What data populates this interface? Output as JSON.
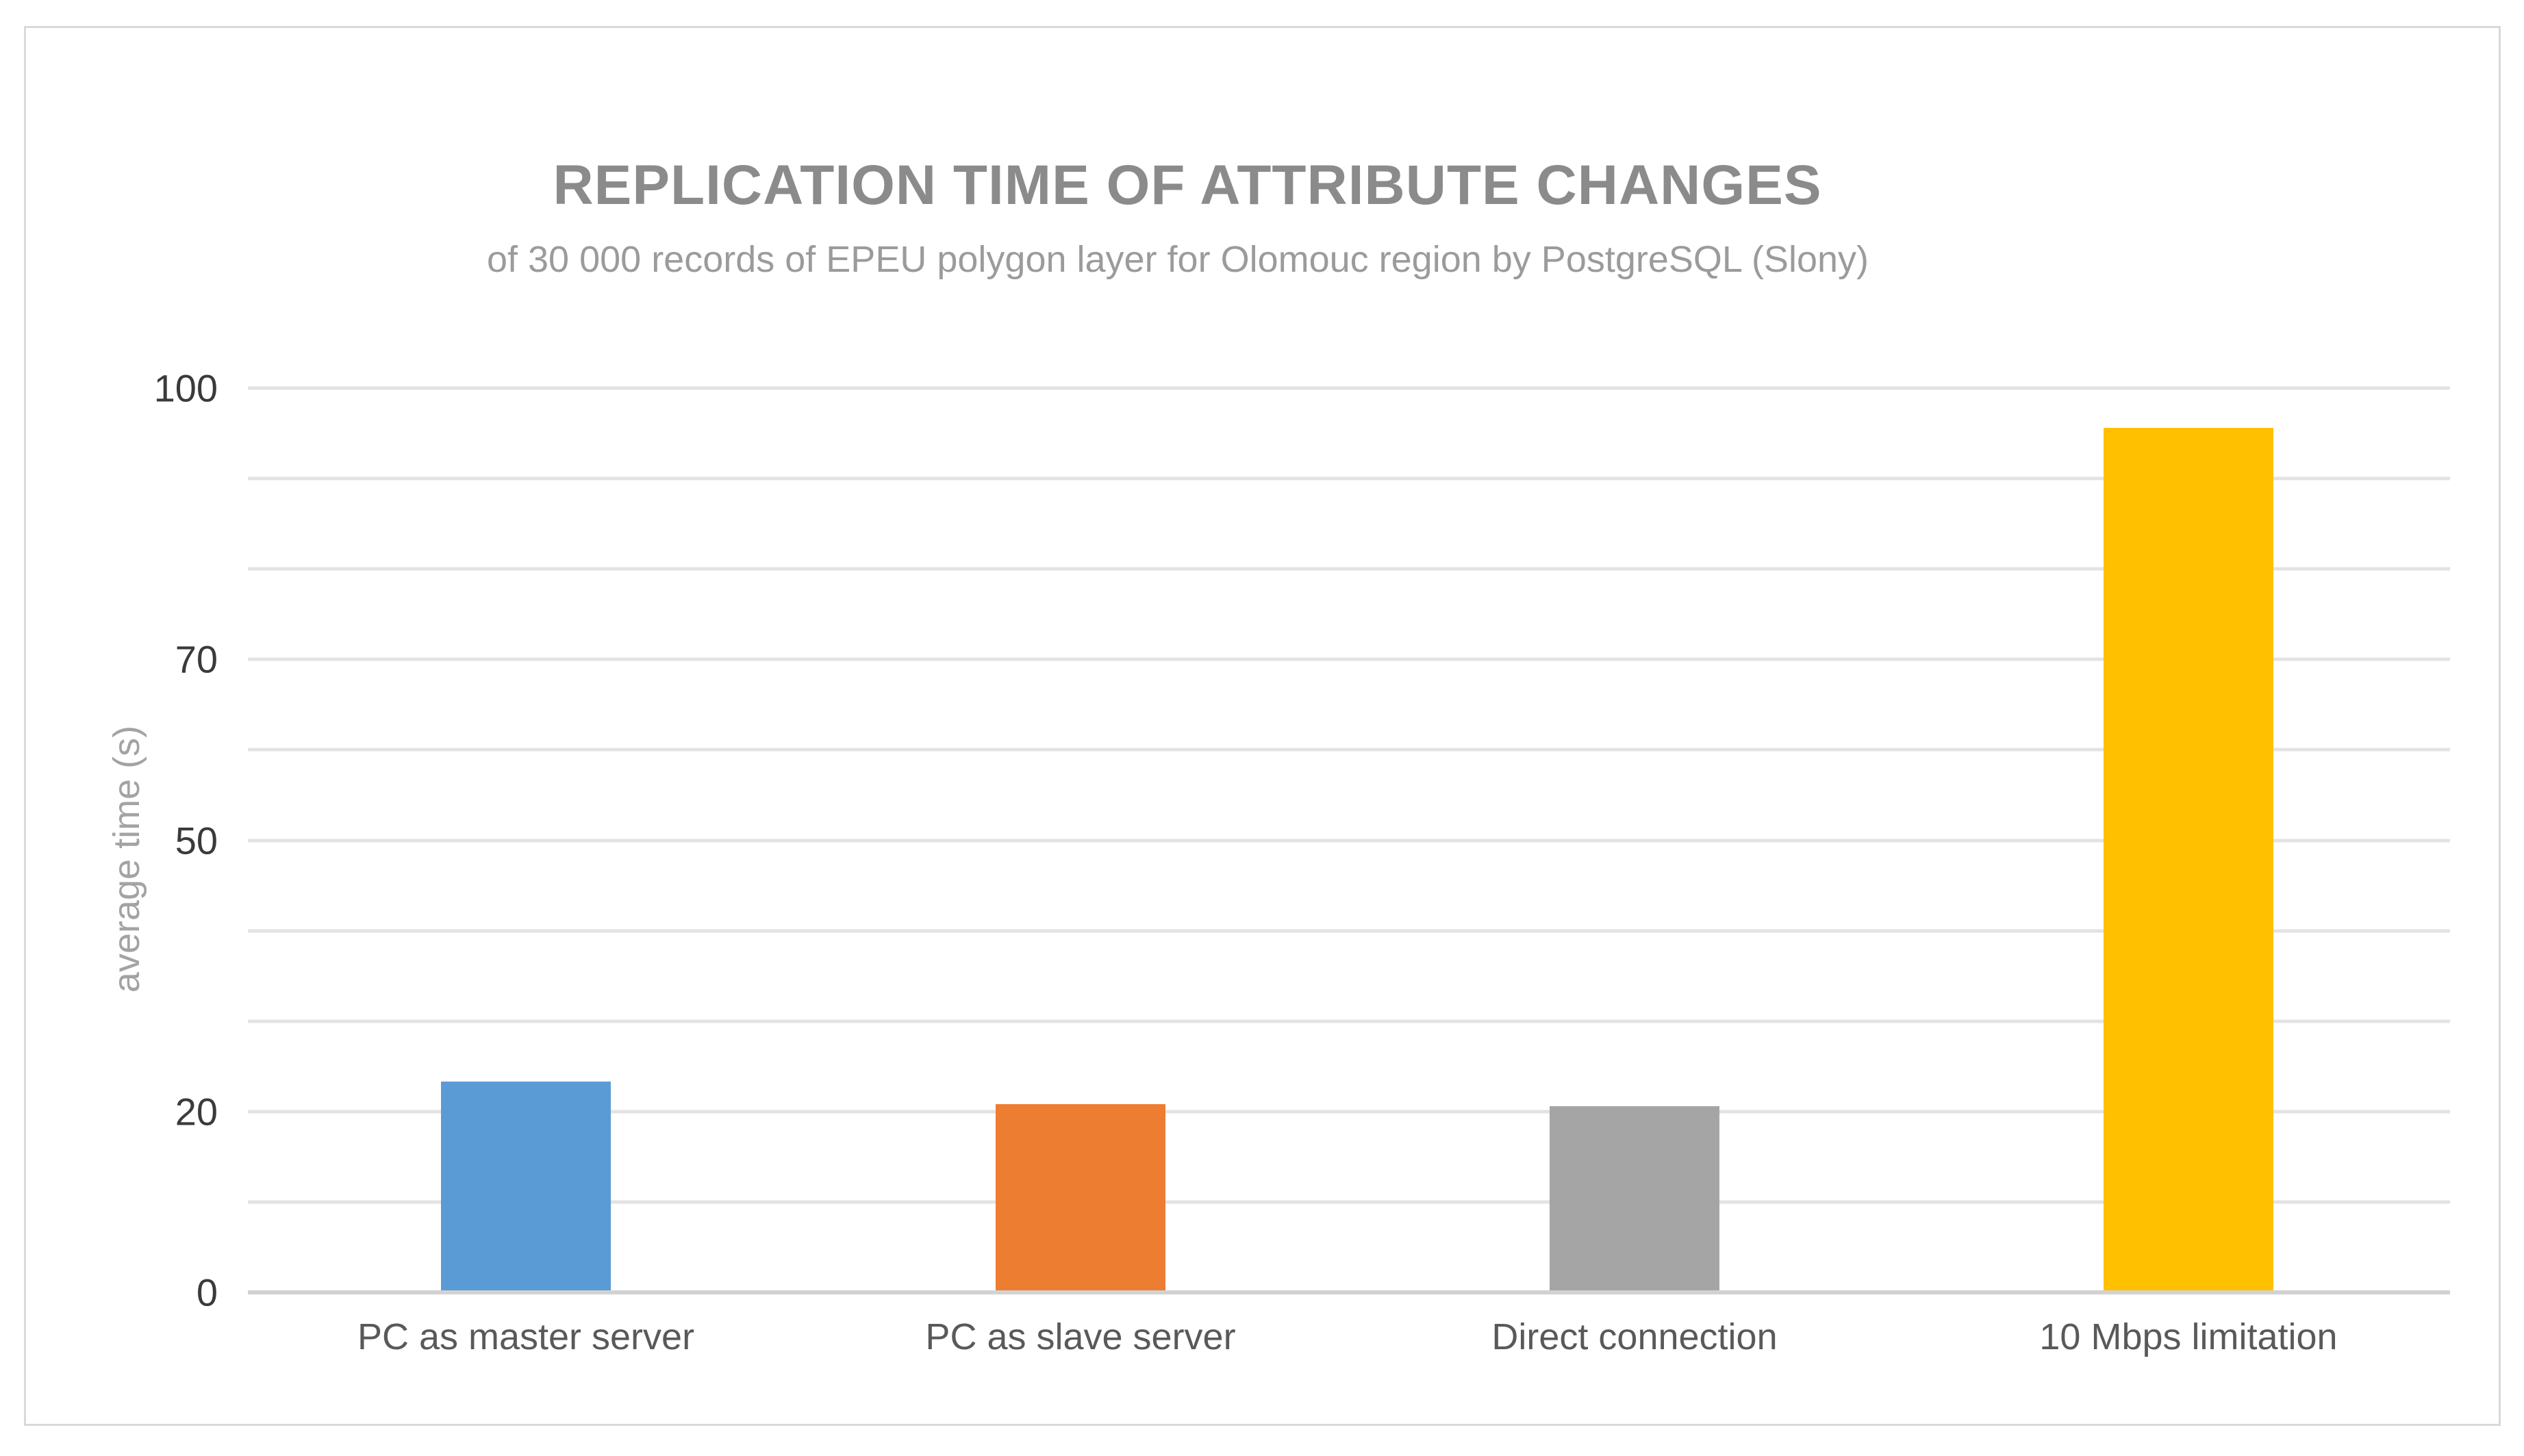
{
  "chart_data": {
    "type": "bar",
    "title": "REPLICATION TIME OF ATTRIBUTE CHANGES",
    "subtitle": "of 30 000 records of EPEU polygon layer for Olomouc region by PostgreSQL (Slony)",
    "ylabel": "average time (s)",
    "xlabel": "",
    "categories": [
      "PC as master server",
      "PC as slave server",
      "Direct connection",
      "10 Mbps limitation"
    ],
    "values": [
      23.3,
      20.8,
      20.6,
      95.6
    ],
    "bar_colors": [
      "#5B9BD5",
      "#ED7D31",
      "#A5A5A5",
      "#FFC000"
    ],
    "ylim": [
      0,
      100
    ],
    "grid_step": 10,
    "yticks_labeled": [
      100,
      70,
      50,
      20,
      0
    ],
    "grid": "horizontal-only",
    "legend": "none"
  },
  "colors": {
    "background": "#ffffff",
    "frame_border": "#d9d9d9",
    "gridline": "#e3e3e3",
    "axis_line": "#d2d2d2",
    "title_text": "#8b8b8b",
    "subtitle_text": "#9b9b9b",
    "tick_text": "#3a3a3a",
    "category_text": "#595959",
    "axis_title_text": "#a3a3a3"
  }
}
